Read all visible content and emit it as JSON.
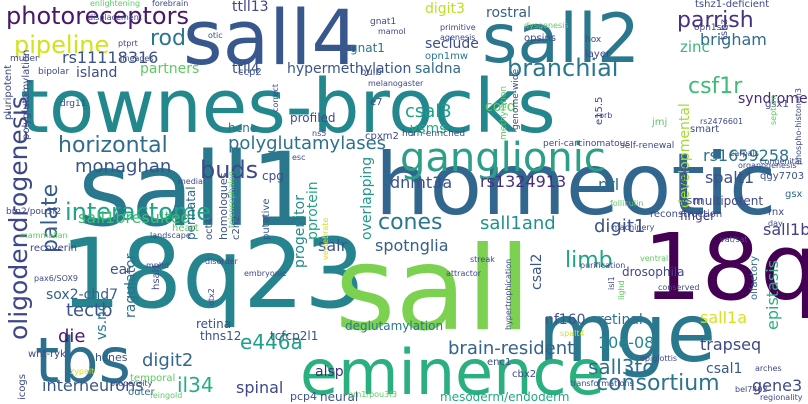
{
  "words": [
    {
      "text": "townes-brocks",
      "color": "#23878e"
    },
    {
      "text": "sall4",
      "color": "#38578c"
    },
    {
      "text": "sall1",
      "color": "#29788e"
    },
    {
      "text": "homeotic",
      "color": "#31668e"
    },
    {
      "text": "18q23",
      "color": "#25848e"
    },
    {
      "text": "sall",
      "color": "#7cd250"
    },
    {
      "text": "sall2",
      "color": "#2a778e"
    },
    {
      "text": "18q",
      "color": "#440154"
    },
    {
      "text": "mge",
      "color": "#2a788e"
    },
    {
      "text": "eminence",
      "color": "#2ab07f"
    },
    {
      "text": "ganglionic",
      "color": "#2c9f86"
    },
    {
      "text": "tbs",
      "color": "#2d6f8e"
    },
    {
      "text": "oligodendrogenesis",
      "color": "#3f4788"
    },
    {
      "text": "photoreceptors",
      "color": "#48186a"
    },
    {
      "text": "pipeline",
      "color": "#d2e21b"
    },
    {
      "text": "rs11118316",
      "color": "#3b528b"
    },
    {
      "text": "rod",
      "color": "#2a778e"
    },
    {
      "text": "branchial",
      "color": "#2a788e"
    },
    {
      "text": "csf1r",
      "color": "#3ebc73"
    },
    {
      "text": "parrish",
      "color": "#46337e"
    },
    {
      "text": "brigham",
      "color": "#2e6d8e"
    },
    {
      "text": "zinc",
      "color": "#37b878"
    },
    {
      "text": "interactome",
      "color": "#20a386"
    },
    {
      "text": "horizontal",
      "color": "#2f6c8e"
    },
    {
      "text": "palate",
      "color": "#365c8d"
    },
    {
      "text": "polyglutamylases",
      "color": "#2c728e"
    },
    {
      "text": "monaghan",
      "color": "#3a548c"
    },
    {
      "text": "rs1659258",
      "color": "#2c738e"
    },
    {
      "text": "spalt1",
      "color": "#3b528b"
    },
    {
      "text": "rs1324913",
      "color": "#46307e"
    },
    {
      "text": "dnmt3a",
      "color": "#3c508b"
    },
    {
      "text": "nrl",
      "color": "#2d708e"
    },
    {
      "text": "buds",
      "color": "#3e4989"
    },
    {
      "text": "e446a",
      "color": "#1fa088"
    },
    {
      "text": "sall1bresulted",
      "color": "#3dbc74"
    },
    {
      "text": "cones",
      "color": "#2a778e"
    },
    {
      "text": "sall1and",
      "color": "#20928c"
    },
    {
      "text": "digit1",
      "color": "#3b528b"
    },
    {
      "text": "sall1b",
      "color": "#433e85"
    },
    {
      "text": "spotnglia",
      "color": "#365d8d"
    },
    {
      "text": "limb",
      "color": "#20a486"
    },
    {
      "text": "salr",
      "color": "#3a548c"
    },
    {
      "text": "interneurons",
      "color": "#39568c"
    },
    {
      "text": "consortium",
      "color": "#2c738e"
    },
    {
      "text": "brain-resident",
      "color": "#33638d"
    },
    {
      "text": "trapseq",
      "color": "#3f4889"
    },
    {
      "text": "sall1a",
      "color": "#d8e219"
    },
    {
      "text": "gene3",
      "color": "#3e4a89"
    },
    {
      "text": "il34",
      "color": "#27ad81"
    },
    {
      "text": "spinal",
      "color": "#3e4989"
    },
    {
      "text": "digit2",
      "color": "#31688e"
    },
    {
      "text": "die",
      "color": "#481b6d"
    },
    {
      "text": "tectb",
      "color": "#3a538b"
    },
    {
      "text": "sox2-chd7",
      "color": "#34618d"
    },
    {
      "text": "csal3",
      "color": "#1fa088"
    },
    {
      "text": "csal1",
      "color": "#38588c"
    },
    {
      "text": "sall3to",
      "color": "#2d708e"
    },
    {
      "text": "10e-08",
      "color": "#24878e"
    },
    {
      "text": "epistasis",
      "color": "#29af7f"
    },
    {
      "text": "nf160",
      "color": "#3b528b"
    },
    {
      "text": "retinal",
      "color": "#2d708e"
    },
    {
      "text": "ttll13",
      "color": "#414487"
    },
    {
      "text": "ttll4",
      "color": "#3c4f8a"
    },
    {
      "text": "hypermethylation",
      "color": "#39558c"
    },
    {
      "text": "saldna",
      "color": "#2f6b8e"
    },
    {
      "text": "seclude",
      "color": "#3c4f8a"
    },
    {
      "text": "cord",
      "color": "#5ec962"
    },
    {
      "text": "partners",
      "color": "#5ec962"
    },
    {
      "text": "island",
      "color": "#3d4d8a"
    },
    {
      "text": "ysms",
      "color": "#22a884"
    },
    {
      "text": "syndrome",
      "color": "#482979"
    },
    {
      "text": "progenitor",
      "color": "#23898e"
    },
    {
      "text": "pprotein",
      "color": "#22a785"
    },
    {
      "text": "overlapping",
      "color": "#1f998a"
    },
    {
      "text": "developmental",
      "color": "#a5db36"
    },
    {
      "text": "csal2",
      "color": "#39568c"
    },
    {
      "text": "digit3",
      "color": "#bddf26"
    },
    {
      "text": "rostral",
      "color": "#34608d"
    },
    {
      "text": "retina",
      "color": "#3c4f8a"
    },
    {
      "text": "ear",
      "color": "#3b528b"
    },
    {
      "text": "vs.nc",
      "color": "#2a788e"
    },
    {
      "text": "alsp",
      "color": "#472f7d"
    },
    {
      "text": "cpg",
      "color": "#3d4d8a"
    },
    {
      "text": "ragulator",
      "color": "#2d708e"
    },
    {
      "text": "hcne",
      "color": "#2b758e"
    },
    {
      "text": "profiled",
      "color": "#3e4c8a"
    },
    {
      "text": "thns12",
      "color": "#3b528b"
    },
    {
      "text": "tcfcp2l1",
      "color": "#3b528b"
    },
    {
      "text": "drosophila",
      "color": "#404688"
    },
    {
      "text": "opn1mw",
      "color": "#2a788e"
    },
    {
      "text": "gnat1",
      "color": "#2b758e"
    },
    {
      "text": "bulb",
      "color": "#3b528b"
    },
    {
      "text": "finger",
      "color": "#453781"
    },
    {
      "text": "ysm",
      "color": "#39568c"
    },
    {
      "text": "mesoderm/endoderm",
      "color": "#22a884"
    },
    {
      "text": "deglutamylation",
      "color": "#2a788e"
    },
    {
      "text": "neural",
      "color": "#3b528b"
    },
    {
      "text": "pcp4",
      "color": "#3b528b"
    },
    {
      "text": "temporal",
      "color": "#5ec962"
    },
    {
      "text": "outer",
      "color": "#31688e"
    },
    {
      "text": "hcnes",
      "color": "#3b528b"
    },
    {
      "text": "icogs",
      "color": "#3e4989"
    },
    {
      "text": "wnt-ryk",
      "color": "#3e4989"
    },
    {
      "text": "perinatal",
      "color": "#31688e"
    },
    {
      "text": "putative",
      "color": "#38588c"
    },
    {
      "text": "homologues",
      "color": "#3b528b"
    },
    {
      "text": "heart",
      "color": "#5ec962"
    },
    {
      "text": "oct4",
      "color": "#3b528b"
    },
    {
      "text": "c2h2",
      "color": "#3b528b"
    },
    {
      "text": "multipotent",
      "color": "#3e4989"
    },
    {
      "text": "cbx2",
      "color": "#3e4989"
    },
    {
      "text": "enc1",
      "color": "#3b528b"
    },
    {
      "text": "gsx1",
      "color": "#3e4989"
    },
    {
      "text": "gsx",
      "color": "#31688e"
    },
    {
      "text": "olfactory",
      "color": "#31688e"
    },
    {
      "text": "reconstruction",
      "color": "#3e4989"
    },
    {
      "text": "rnx",
      "color": "#3e4989"
    },
    {
      "text": "qgy7703",
      "color": "#3b528b"
    },
    {
      "text": "smart",
      "color": "#3e4989"
    },
    {
      "text": "e7",
      "color": "#3e4989"
    },
    {
      "text": "ccp2",
      "color": "#3b528b"
    },
    {
      "text": "muller",
      "color": "#3e4989"
    },
    {
      "text": "bipolar",
      "color": "#3e4989"
    },
    {
      "text": "drg11",
      "color": "#3e4989"
    },
    {
      "text": "hsal1",
      "color": "#3e4989"
    },
    {
      "text": "pluripotent",
      "color": "#3e4989"
    },
    {
      "text": "polyglutamylation",
      "color": "#3e4989"
    },
    {
      "text": "recoverin",
      "color": "#3e4989"
    },
    {
      "text": "brn2/pou3f2",
      "color": "#3e4989"
    },
    {
      "text": "opsins",
      "color": "#3e4989"
    },
    {
      "text": "layer",
      "color": "#3e4989"
    },
    {
      "text": "hox",
      "color": "#3e4989"
    },
    {
      "text": "tshz1-deficient",
      "color": "#3e4989"
    },
    {
      "text": "tshz",
      "color": "#3e4989"
    },
    {
      "text": "opn1sw",
      "color": "#3e4989"
    },
    {
      "text": "enlightening",
      "color": "#5ec962"
    },
    {
      "text": "forebrain",
      "color": "#3e4989"
    },
    {
      "text": "displacement",
      "color": "#3e4989"
    },
    {
      "text": "lineages",
      "color": "#3e4989"
    },
    {
      "text": "primitive",
      "color": "#3e4989"
    },
    {
      "text": "agenesis",
      "color": "#3e4989"
    },
    {
      "text": "dysgenesis",
      "color": "#5ec962"
    },
    {
      "text": "melanogaster",
      "color": "#3e4989"
    },
    {
      "text": "otic",
      "color": "#3e4989"
    },
    {
      "text": "ptprt",
      "color": "#3e4989"
    },
    {
      "text": "genome-wide",
      "color": "#3e4989"
    },
    {
      "text": "self-renewal",
      "color": "#3e4989"
    },
    {
      "text": "methylation",
      "color": "#5ec962"
    },
    {
      "text": "peri-carcinomatous",
      "color": "#3e4989"
    },
    {
      "text": "horn-enriched",
      "color": "#3e4989"
    },
    {
      "text": "cpxm2",
      "color": "#3e4989"
    },
    {
      "text": "carpals",
      "color": "#3e4989"
    },
    {
      "text": "congenital",
      "color": "#3e4989"
    },
    {
      "text": "organogenesis",
      "color": "#3e4989"
    },
    {
      "text": "phospho-histoneh3",
      "color": "#3e4989"
    },
    {
      "text": "septum",
      "color": "#5ec962"
    },
    {
      "text": "rs2476601",
      "color": "#3e4989"
    },
    {
      "text": "arches",
      "color": "#3e4989"
    },
    {
      "text": "mammalian",
      "color": "#5ec962"
    },
    {
      "text": "landscape",
      "color": "#3e4989"
    },
    {
      "text": "medial",
      "color": "#3e4989"
    },
    {
      "text": "correct",
      "color": "#3e4989"
    },
    {
      "text": "ns5",
      "color": "#3e4989"
    },
    {
      "text": "mphd",
      "color": "#3e4989"
    },
    {
      "text": "disorder",
      "color": "#3e4989"
    },
    {
      "text": "embryonic",
      "color": "#3e4989"
    },
    {
      "text": "otx2",
      "color": "#3e4989"
    },
    {
      "text": "streak",
      "color": "#3e4989"
    },
    {
      "text": "attractor",
      "color": "#3e4989"
    },
    {
      "text": "purification",
      "color": "#3e4989"
    },
    {
      "text": "isl1",
      "color": "#3e4989"
    },
    {
      "text": "lighd",
      "color": "#5ec962"
    },
    {
      "text": "conserved",
      "color": "#3e4989"
    },
    {
      "text": "folliculin",
      "color": "#5ec962"
    },
    {
      "text": "machinery",
      "color": "#3e4989"
    },
    {
      "text": "vat/sat",
      "color": "#3e4989"
    },
    {
      "text": "spalt4",
      "color": "#d2e21b"
    },
    {
      "text": "brn1/pou3f3",
      "color": "#5ec962"
    },
    {
      "text": "epiglottis",
      "color": "#3e4989"
    },
    {
      "text": "transformations",
      "color": "#3e4989"
    },
    {
      "text": "bel7402",
      "color": "#3e4989"
    },
    {
      "text": "regionality",
      "color": "#3e4989"
    },
    {
      "text": "propensity",
      "color": "#3e4989"
    },
    {
      "text": "feingold",
      "color": "#5ec962"
    },
    {
      "text": "zypalt",
      "color": "#d2e21b"
    },
    {
      "text": "pax6/SOX9",
      "color": "#3e4989"
    },
    {
      "text": "mamol",
      "color": "#3e4989"
    },
    {
      "text": "gnat1",
      "color": "#3e4989"
    },
    {
      "text": "e15.5",
      "color": "#3e4989"
    },
    {
      "text": "jmj",
      "color": "#5ec962"
    },
    {
      "text": "pwwp",
      "color": "#3e4989"
    },
    {
      "text": "rorb",
      "color": "#3e4989"
    },
    {
      "text": "telencephalon",
      "color": "#5ec962"
    },
    {
      "text": "day",
      "color": "#3e4989"
    },
    {
      "text": "esc",
      "color": "#3e4989"
    },
    {
      "text": "hypertrophication",
      "color": "#3e4989"
    },
    {
      "text": "ventral",
      "color": "#5ec962"
    },
    {
      "text": "vertebrate",
      "color": "#d2e21b"
    }
  ]
}
